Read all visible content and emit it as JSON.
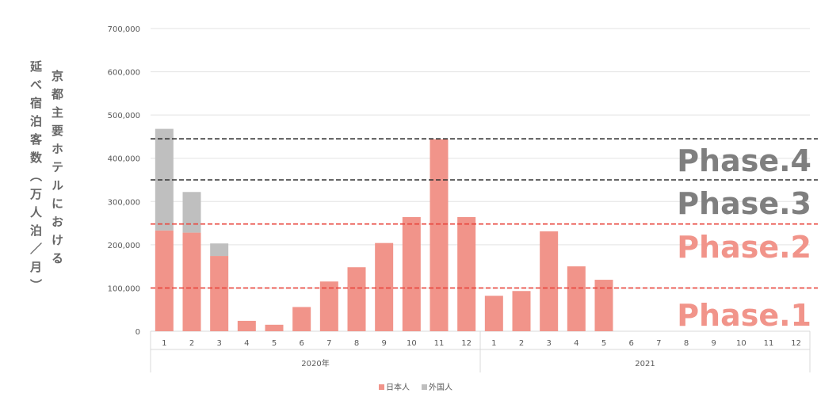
{
  "chart_data": {
    "type": "bar",
    "stacked": true,
    "ylabel_lines": [
      "京都主要ホテルにおける",
      "延べ宿泊客数（万人泊／月）"
    ],
    "ylim": [
      0,
      700000
    ],
    "yticks": [
      "0",
      "100,000",
      "200,000",
      "300,000",
      "400,000",
      "500,000",
      "600,000",
      "700,000"
    ],
    "grid": true,
    "categories": [
      "1",
      "2",
      "3",
      "4",
      "5",
      "6",
      "7",
      "8",
      "9",
      "10",
      "11",
      "12",
      "1",
      "2",
      "3",
      "4",
      "5",
      "6",
      "7",
      "8",
      "9",
      "10",
      "11",
      "12"
    ],
    "groups": [
      {
        "label": "2020年",
        "count": 12
      },
      {
        "label": "2021",
        "count": 12
      }
    ],
    "series": [
      {
        "name": "日本人",
        "color": "#f1948a",
        "values": [
          233000,
          228000,
          174000,
          24000,
          15000,
          56000,
          115000,
          148000,
          204000,
          264000,
          444000,
          264000,
          82000,
          93000,
          231000,
          150000,
          119000,
          null,
          null,
          null,
          null,
          null,
          null,
          null
        ]
      },
      {
        "name": "外国人",
        "color": "#bfbfbf",
        "values": [
          235000,
          94000,
          29000,
          0,
          0,
          0,
          0,
          0,
          0,
          0,
          0,
          0,
          0,
          0,
          0,
          0,
          0,
          null,
          null,
          null,
          null,
          null,
          null,
          null
        ]
      }
    ],
    "legend_position": "bottom",
    "reference_lines": [
      {
        "value": 445000,
        "color": "#333333",
        "label": "Phase.4",
        "label_color": "#7f7f7f"
      },
      {
        "value": 350000,
        "color": "#333333",
        "label": "Phase.3",
        "label_color": "#7f7f7f"
      },
      {
        "value": 248000,
        "color": "#e8453c",
        "label": "Phase.2",
        "label_color": "#f1948a"
      },
      {
        "value": 100000,
        "color": "#e8453c",
        "label": "Phase.1",
        "label_color": "#f1948a"
      }
    ]
  }
}
